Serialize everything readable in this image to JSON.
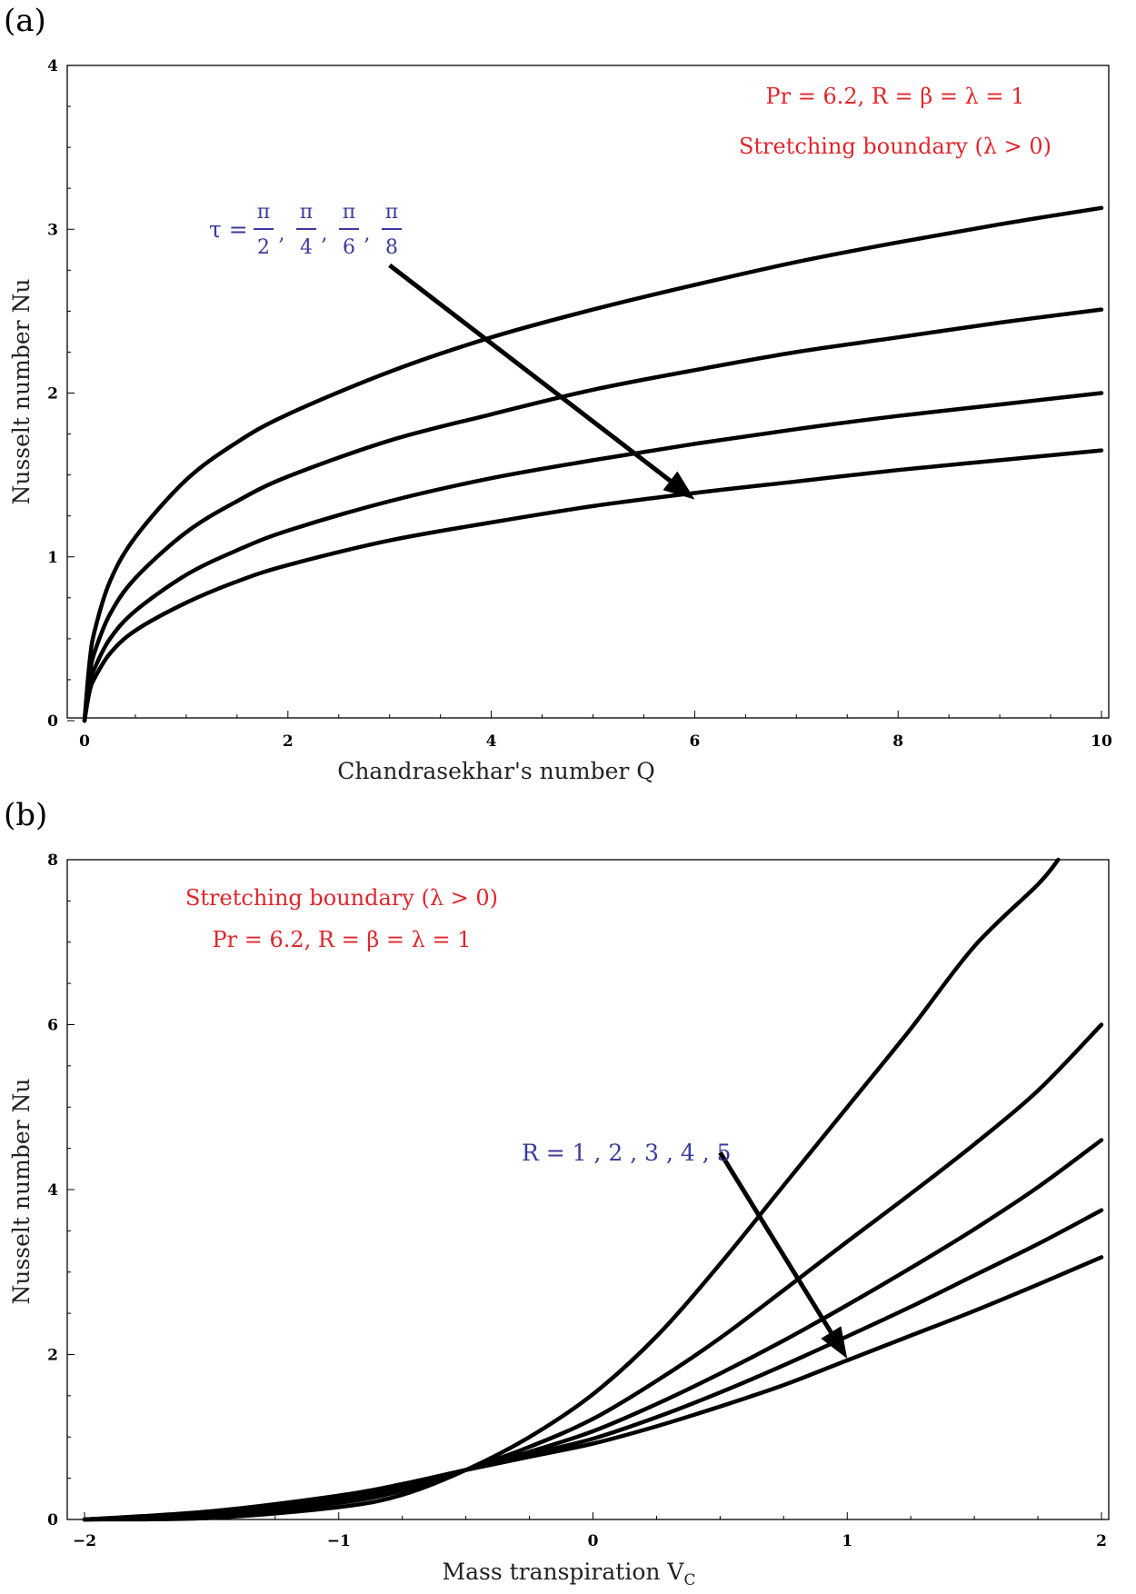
{
  "chart_data": [
    {
      "panel": "(a)",
      "type": "line",
      "xlabel": "Chandrasekhar's number Q",
      "ylabel": "Nusselt number Nu",
      "xlim": [
        0,
        10
      ],
      "ylim": [
        0,
        4
      ],
      "xticks": [
        0,
        2,
        4,
        6,
        8,
        10
      ],
      "yticks": [
        0,
        1,
        2,
        3,
        4
      ],
      "annotations": {
        "line1": "Pr = 6.2, R = β = λ = 1",
        "line2": "Stretching boundary (λ > 0)",
        "param_prefix": "τ =",
        "param_numerator": "π",
        "param_denominators": [
          "2",
          "4",
          "6",
          "8"
        ],
        "param_separator": ","
      },
      "series": [
        {
          "name": "τ = π/2",
          "x": [
            0,
            0.05,
            0.1,
            0.25,
            0.5,
            1,
            1.5,
            2,
            3,
            4,
            5,
            6,
            7,
            8,
            9,
            10
          ],
          "values": [
            0,
            0.36,
            0.55,
            0.85,
            1.12,
            1.47,
            1.7,
            1.87,
            2.13,
            2.34,
            2.51,
            2.66,
            2.8,
            2.92,
            3.03,
            3.13
          ]
        },
        {
          "name": "τ = π/4",
          "x": [
            0,
            0.05,
            0.1,
            0.25,
            0.5,
            1,
            1.5,
            2,
            3,
            4,
            5,
            6,
            7,
            8,
            9,
            10
          ],
          "values": [
            0,
            0.28,
            0.42,
            0.65,
            0.87,
            1.15,
            1.34,
            1.49,
            1.71,
            1.87,
            2.02,
            2.14,
            2.25,
            2.34,
            2.43,
            2.51
          ]
        },
        {
          "name": "τ = π/6",
          "x": [
            0,
            0.05,
            0.1,
            0.25,
            0.5,
            1,
            1.5,
            2,
            3,
            4,
            5,
            6,
            7,
            8,
            9,
            10
          ],
          "values": [
            0,
            0.22,
            0.32,
            0.5,
            0.67,
            0.89,
            1.04,
            1.16,
            1.34,
            1.48,
            1.59,
            1.69,
            1.78,
            1.86,
            1.93,
            2.0
          ]
        },
        {
          "name": "τ = π/8",
          "x": [
            0,
            0.05,
            0.1,
            0.25,
            0.5,
            1,
            1.5,
            2,
            3,
            4,
            5,
            6,
            7,
            8,
            9,
            10
          ],
          "values": [
            0,
            0.18,
            0.26,
            0.41,
            0.55,
            0.72,
            0.85,
            0.95,
            1.1,
            1.21,
            1.31,
            1.39,
            1.46,
            1.53,
            1.59,
            1.65
          ]
        }
      ],
      "arrow": {
        "from": [
          3,
          2.78
        ],
        "to": [
          6,
          1.35
        ]
      }
    },
    {
      "panel": "(b)",
      "type": "line",
      "xlabel": "Mass transpiration V",
      "xlabel_sub": "C",
      "ylabel": "Nusselt number  Nu",
      "xlim": [
        -2,
        2
      ],
      "ylim": [
        0,
        8
      ],
      "xticks": [
        -2,
        -1,
        0,
        1,
        2
      ],
      "yticks": [
        0,
        2,
        4,
        6,
        8
      ],
      "tick_labels_x": [
        "−2",
        "−1",
        "0",
        "1",
        "2"
      ],
      "annotations": {
        "line1": "Stretching boundary (λ > 0)",
        "line2": "Pr = 6.2, R = β = λ = 1",
        "param": "R = 1 , 2 , 3 , 4 , 5"
      },
      "series": [
        {
          "name": "R = 1",
          "x": [
            -2,
            -1.5,
            -1,
            -0.75,
            -0.5,
            -0.25,
            0,
            0.25,
            0.5,
            0.75,
            1,
            1.25,
            1.5,
            1.75,
            1.83
          ],
          "values": [
            0.0,
            0.02,
            0.15,
            0.3,
            0.6,
            1.0,
            1.52,
            2.22,
            3.1,
            4.05,
            5.0,
            5.95,
            6.95,
            7.7,
            8.0
          ]
        },
        {
          "name": "R = 2",
          "x": [
            -2,
            -1.5,
            -1,
            -0.75,
            -0.5,
            -0.25,
            0,
            0.25,
            0.5,
            0.75,
            1,
            1.25,
            1.5,
            1.75,
            2
          ],
          "values": [
            0.0,
            0.04,
            0.2,
            0.35,
            0.6,
            0.88,
            1.22,
            1.68,
            2.2,
            2.78,
            3.37,
            3.95,
            4.55,
            5.2,
            6.0
          ]
        },
        {
          "name": "R = 3",
          "x": [
            -2,
            -1.5,
            -1,
            -0.75,
            -0.5,
            -0.25,
            0,
            0.25,
            0.5,
            0.75,
            1,
            1.25,
            1.5,
            1.75,
            2
          ],
          "values": [
            0.0,
            0.06,
            0.24,
            0.38,
            0.6,
            0.82,
            1.07,
            1.4,
            1.77,
            2.17,
            2.6,
            3.05,
            3.52,
            4.03,
            4.6
          ]
        },
        {
          "name": "R = 4",
          "x": [
            -2,
            -1.5,
            -1,
            -0.75,
            -0.5,
            -0.25,
            0,
            0.25,
            0.5,
            0.75,
            1,
            1.25,
            1.5,
            1.75,
            2
          ],
          "values": [
            0.0,
            0.08,
            0.27,
            0.41,
            0.6,
            0.79,
            0.98,
            1.24,
            1.54,
            1.87,
            2.22,
            2.58,
            2.96,
            3.34,
            3.75
          ]
        },
        {
          "name": "R = 5",
          "x": [
            -2,
            -1.5,
            -1,
            -0.75,
            -0.5,
            -0.25,
            0,
            0.25,
            0.5,
            0.75,
            1,
            1.25,
            1.5,
            1.75,
            2
          ],
          "values": [
            0.0,
            0.1,
            0.29,
            0.43,
            0.6,
            0.76,
            0.92,
            1.13,
            1.37,
            1.63,
            1.93,
            2.23,
            2.53,
            2.85,
            3.18
          ]
        }
      ],
      "arrow": {
        "from": [
          0.5,
          4.45
        ],
        "to": [
          1.0,
          1.95
        ]
      }
    }
  ]
}
